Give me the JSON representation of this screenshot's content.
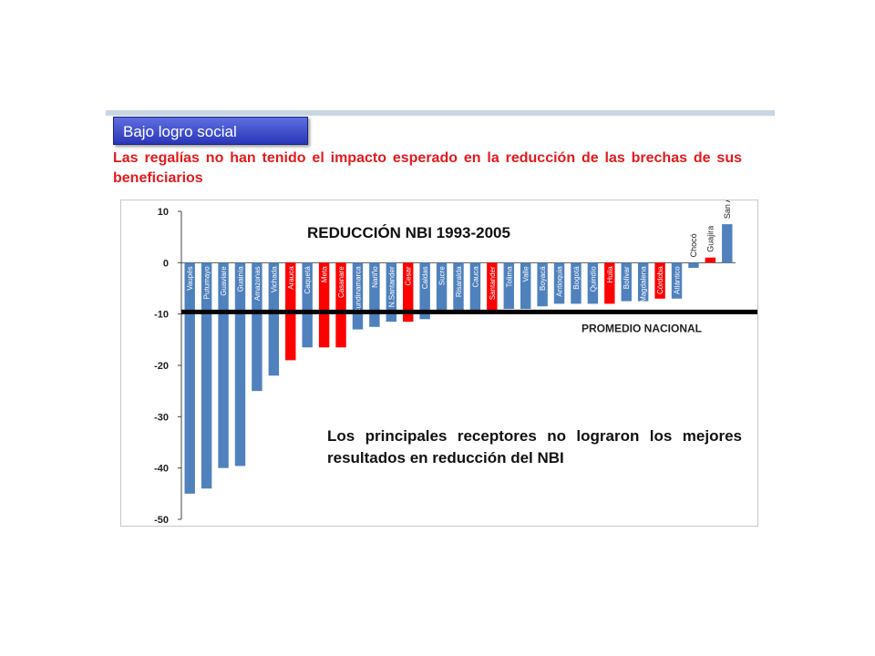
{
  "header": {
    "tag_label": "Bajo logro social",
    "subtitle": "Las regalías no han tenido el impacto esperado en la reducción de las brechas de sus beneficiarios"
  },
  "chart_data": {
    "type": "bar",
    "title": "REDUCCIÓN NBI 1993-2005",
    "ylim": [
      -50,
      10
    ],
    "yticks": [
      10,
      0,
      -10,
      -20,
      -30,
      -40,
      -50
    ],
    "reference_line": {
      "value": -9.6,
      "label": "PROMEDIO NACIONAL"
    },
    "annotation": "Los principales receptores no lograron los mejores resultados en reducción del NBI",
    "colors": {
      "default": "#4f81bd",
      "highlight": "#ff0000",
      "reference": "#000000"
    },
    "categories": [
      "Vaupés",
      "Putumayo",
      "Guaviare",
      "Guainía",
      "Amazonas",
      "Vichada",
      "Arauca",
      "Caquetá",
      "Meta",
      "Casanare",
      "Cundinamarca",
      "Nariño",
      "N.Santander",
      "Cesar",
      "Caldas",
      "Sucre",
      "Risaralda",
      "Cauca",
      "Santander",
      "Tolima",
      "Valle",
      "Boyacá",
      "Antioquia",
      "Bogotá",
      "Quindío",
      "Huila",
      "Bolívar",
      "Magdalena",
      "Córdoba",
      "Atlántico",
      "Chocó",
      "Guajira",
      "San Andrés"
    ],
    "values": [
      -45,
      -44,
      -40,
      -39.6,
      -25,
      -22,
      -19,
      -16.5,
      -16.5,
      -16.5,
      -13,
      -12.5,
      -11.5,
      -11.5,
      -11,
      -10,
      -10,
      -10,
      -9.5,
      -9,
      -9,
      -8.5,
      -8,
      -8,
      -8,
      -8,
      -7.5,
      -7.5,
      -7,
      -7,
      -1,
      1,
      7.5
    ],
    "highlighted": [
      "Arauca",
      "Meta",
      "Casanare",
      "Cesar",
      "Santander",
      "Huila",
      "Córdoba",
      "Guajira"
    ],
    "rotated_labels_above": [
      "Chocó",
      "Guajira",
      "San Andrés"
    ]
  }
}
